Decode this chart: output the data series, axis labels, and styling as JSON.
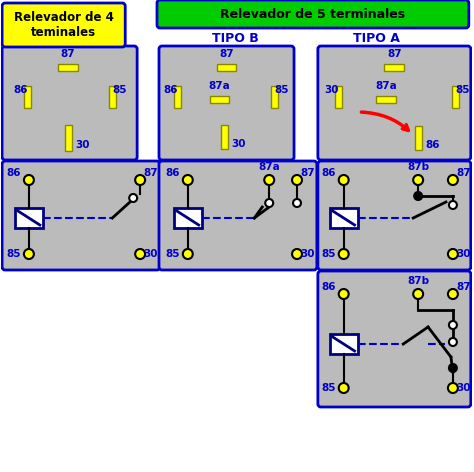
{
  "title1": "Relevador de 4\nteminales",
  "title2": "Relevador de 5 terminales",
  "tipo_b": "TIPO B",
  "tipo_a": "TIPO A",
  "bg_color": "#ffffff",
  "blue_border": "#0000cc",
  "label_color": "#0000cc"
}
